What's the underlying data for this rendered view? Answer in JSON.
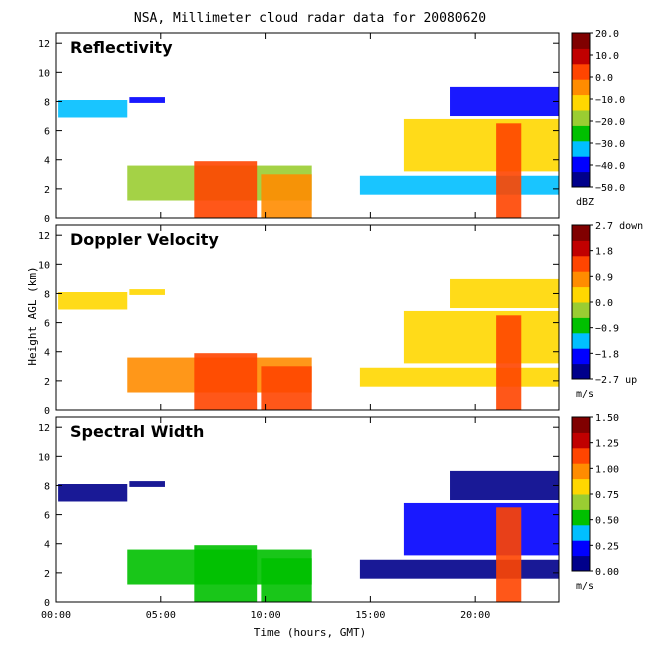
{
  "chart_data": {
    "type": "heatmap",
    "title": "NSA, Millimeter cloud radar data for 20080620",
    "xlabel": "Time (hours, GMT)",
    "ylabel": "Height AGL (km)",
    "x_ticks": [
      "00:00",
      "05:00",
      "10:00",
      "15:00",
      "20:00"
    ],
    "xlim_hours": [
      0,
      24
    ],
    "ylim_km": [
      0,
      12.7
    ],
    "y_ticks": [
      "0",
      "2",
      "4",
      "6",
      "8",
      "10",
      "12"
    ],
    "panels": [
      {
        "name": "Reflectivity",
        "unit": "dBZ",
        "colorbar_ticks": [
          "20.0",
          "10.0",
          "0.0",
          "−10.0",
          "−20.0",
          "−30.0",
          "−40.0",
          "−50.0"
        ],
        "vmin": -50,
        "vmax": 20,
        "colormap": [
          "#00008b",
          "#0000ff",
          "#00bfff",
          "#00c000",
          "#9acd32",
          "#ffd700",
          "#ff8c00",
          "#ff4500",
          "#c00000",
          "#800000"
        ],
        "cloud_layers": [
          {
            "t_start": 0.1,
            "t_end": 3.4,
            "z_bottom": 6.9,
            "z_top": 8.1,
            "value": -35
          },
          {
            "t_start": 3.5,
            "t_end": 5.2,
            "z_bottom": 7.9,
            "z_top": 8.3,
            "value": -40
          },
          {
            "t_start": 3.4,
            "t_end": 12.2,
            "z_bottom": 1.2,
            "z_top": 3.6,
            "value": -20
          },
          {
            "t_start": 6.6,
            "t_end": 9.6,
            "z_bottom": 0.0,
            "z_top": 3.9,
            "value": 5
          },
          {
            "t_start": 9.8,
            "t_end": 12.2,
            "z_bottom": 0.0,
            "z_top": 3.0,
            "value": -5
          },
          {
            "t_start": 14.5,
            "t_end": 24.0,
            "z_bottom": 1.6,
            "z_top": 2.9,
            "value": -35
          },
          {
            "t_start": 16.6,
            "t_end": 24.0,
            "z_bottom": 3.2,
            "z_top": 6.8,
            "value": -15
          },
          {
            "t_start": 18.8,
            "t_end": 24.0,
            "z_bottom": 7.0,
            "z_top": 9.0,
            "value": -38
          },
          {
            "t_start": 21.0,
            "t_end": 22.2,
            "z_bottom": 0.0,
            "z_top": 6.5,
            "value": 3
          }
        ]
      },
      {
        "name": "Doppler Velocity",
        "unit": "m/s",
        "colorbar_ticks": [
          "2.7 down",
          "1.8",
          "0.9",
          "0.0",
          "−0.9",
          "−1.8",
          "−2.7 up"
        ],
        "vmin": -2.7,
        "vmax": 2.7,
        "colormap": [
          "#00008b",
          "#0000ff",
          "#00bfff",
          "#00c000",
          "#9acd32",
          "#ffd700",
          "#ff8c00",
          "#ff4500",
          "#c00000",
          "#800000"
        ],
        "cloud_layers": [
          {
            "t_start": 0.1,
            "t_end": 3.4,
            "z_bottom": 6.9,
            "z_top": 8.1,
            "value": 0.4
          },
          {
            "t_start": 3.5,
            "t_end": 5.2,
            "z_bottom": 7.9,
            "z_top": 8.3,
            "value": 0.4
          },
          {
            "t_start": 3.4,
            "t_end": 12.2,
            "z_bottom": 1.2,
            "z_top": 3.6,
            "value": 0.6
          },
          {
            "t_start": 6.6,
            "t_end": 9.6,
            "z_bottom": 0.0,
            "z_top": 3.9,
            "value": 1.4
          },
          {
            "t_start": 9.8,
            "t_end": 12.2,
            "z_bottom": 0.0,
            "z_top": 3.0,
            "value": 1.2
          },
          {
            "t_start": 14.5,
            "t_end": 24.0,
            "z_bottom": 1.6,
            "z_top": 2.9,
            "value": 0.5
          },
          {
            "t_start": 16.6,
            "t_end": 24.0,
            "z_bottom": 3.2,
            "z_top": 6.8,
            "value": 0.5
          },
          {
            "t_start": 18.8,
            "t_end": 24.0,
            "z_bottom": 7.0,
            "z_top": 9.0,
            "value": 0.4
          },
          {
            "t_start": 21.0,
            "t_end": 22.2,
            "z_bottom": 0.0,
            "z_top": 6.5,
            "value": 1.5
          }
        ]
      },
      {
        "name": "Spectral Width",
        "unit": "m/s",
        "colorbar_ticks": [
          "1.50",
          "1.25",
          "1.00",
          "0.75",
          "0.50",
          "0.25",
          "0.00"
        ],
        "vmin": 0.0,
        "vmax": 1.5,
        "colormap": [
          "#00008b",
          "#0000ff",
          "#00bfff",
          "#00c000",
          "#9acd32",
          "#ffd700",
          "#ff8c00",
          "#ff4500",
          "#c00000",
          "#800000"
        ],
        "cloud_layers": [
          {
            "t_start": 0.1,
            "t_end": 3.4,
            "z_bottom": 6.9,
            "z_top": 8.1,
            "value": 0.1
          },
          {
            "t_start": 3.5,
            "t_end": 5.2,
            "z_bottom": 7.9,
            "z_top": 8.3,
            "value": 0.1
          },
          {
            "t_start": 3.4,
            "t_end": 12.2,
            "z_bottom": 1.2,
            "z_top": 3.6,
            "value": 0.45
          },
          {
            "t_start": 6.6,
            "t_end": 9.6,
            "z_bottom": 0.0,
            "z_top": 3.9,
            "value": 0.6
          },
          {
            "t_start": 9.8,
            "t_end": 12.2,
            "z_bottom": 0.0,
            "z_top": 3.0,
            "value": 0.55
          },
          {
            "t_start": 14.5,
            "t_end": 24.0,
            "z_bottom": 1.6,
            "z_top": 2.9,
            "value": 0.15
          },
          {
            "t_start": 16.6,
            "t_end": 24.0,
            "z_bottom": 3.2,
            "z_top": 6.8,
            "value": 0.2
          },
          {
            "t_start": 18.8,
            "t_end": 24.0,
            "z_bottom": 7.0,
            "z_top": 9.0,
            "value": 0.1
          },
          {
            "t_start": 21.0,
            "t_end": 22.2,
            "z_bottom": 0.0,
            "z_top": 6.5,
            "value": 1.2
          }
        ]
      }
    ]
  }
}
